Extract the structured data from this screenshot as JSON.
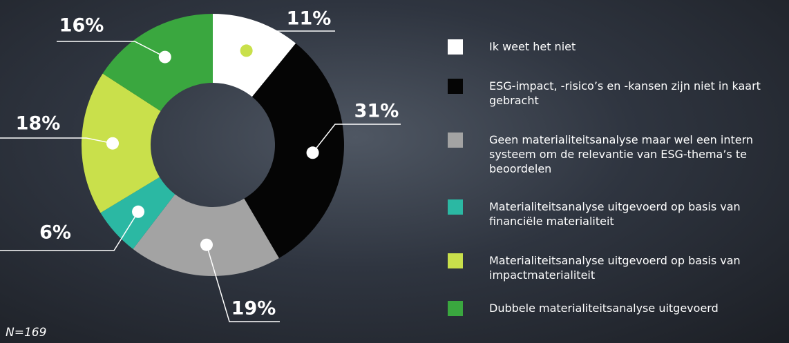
{
  "chart_data": {
    "type": "donut",
    "categories": [
      "Ik weet het niet",
      "ESG-impact, -risico’s en -kansen zijn niet in kaart gebracht",
      "Geen materialiteitsanalyse maar wel een intern systeem om de relevantie van ESG-thema’s te beoordelen",
      "Materialiteitsanalyse uitgevoerd op basis van financiële materialiteit",
      "Materialiteitsanalyse uitgevoerd op basis van impactmaterialiteit",
      "Dubbele materialiteitsanalyse uitgevoerd"
    ],
    "values": [
      11,
      31,
      19,
      6,
      18,
      16
    ],
    "value_labels": [
      "11%",
      "31%",
      "19%",
      "6%",
      "18%",
      "16%"
    ],
    "colors": [
      "#ffffff",
      "#050505",
      "#a3a3a3",
      "#2bb8a3",
      "#c9e04b",
      "#3aa73f"
    ],
    "note": "N=169"
  }
}
